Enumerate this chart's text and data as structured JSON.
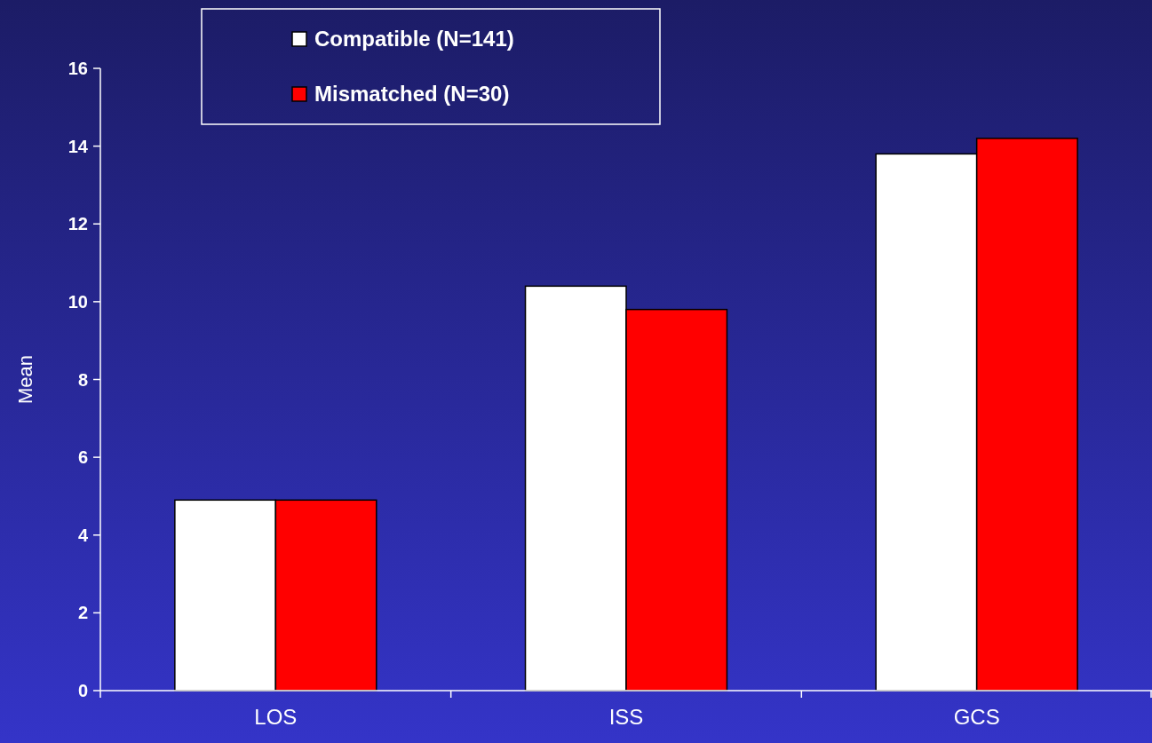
{
  "chart_data": {
    "type": "bar",
    "ylabel": "Mean",
    "categories": [
      "LOS",
      "ISS",
      "GCS"
    ],
    "series": [
      {
        "name": "Compatible (N=141)",
        "color": "#ffffff",
        "values": [
          4.9,
          10.4,
          13.8
        ]
      },
      {
        "name": "Mismatched (N=30)",
        "color": "#ff0000",
        "values": [
          4.9,
          9.8,
          14.2
        ]
      }
    ],
    "ylim": [
      0,
      16
    ],
    "yticks": [
      0,
      2,
      4,
      6,
      8,
      10,
      12,
      14,
      16
    ],
    "grid": false,
    "legend": "top left"
  }
}
